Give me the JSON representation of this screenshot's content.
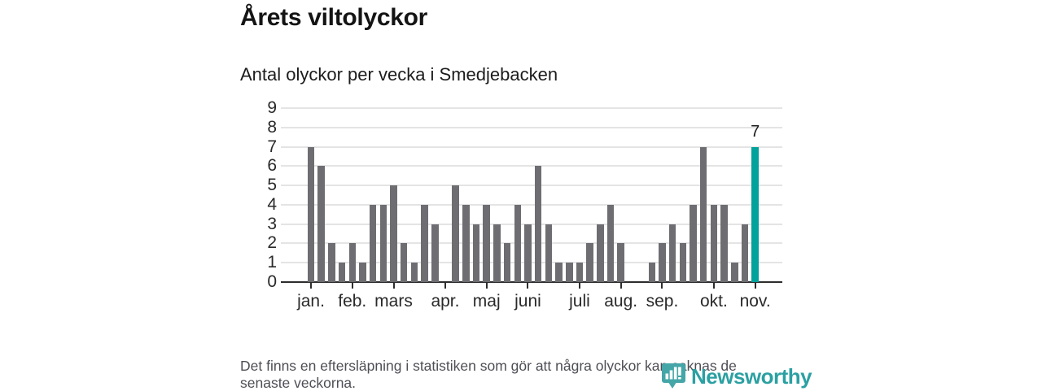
{
  "title": "Årets viltolyckor",
  "subtitle": "Antal olyckor per vecka i Smedjebacken",
  "footer": {
    "line1": "Det finns en eftersläpning i statistiken som gör att några olyckor kan saknas de",
    "line2": "senaste veckorna."
  },
  "logo": {
    "text": "Newsworthy",
    "icon": "newsworthy-speech-bubble-chart-icon"
  },
  "colors": {
    "bar": "#6d6d72",
    "highlight_teal": "#00a29b",
    "logo_teal": "#2ba0a2",
    "gridline": "#e4e4e4",
    "axis": "#2d2d2d"
  },
  "chart_data": {
    "type": "bar",
    "title": "Årets viltolyckor",
    "subtitle": "Antal olyckor per vecka i Smedjebacken",
    "x_unit": "vecka (week), jan–nov",
    "ylabel": "Antal olyckor",
    "values": [
      7,
      6,
      2,
      1,
      2,
      1,
      4,
      4,
      5,
      2,
      1,
      4,
      3,
      0,
      5,
      4,
      3,
      4,
      3,
      2,
      4,
      3,
      6,
      3,
      1,
      1,
      1,
      2,
      3,
      4,
      2,
      0,
      0,
      1,
      2,
      3,
      2,
      4,
      7,
      4,
      4,
      1,
      3,
      7
    ],
    "highlight_index": 43,
    "highlight_value": 7,
    "annotation_label": "7",
    "y_ticks": [
      "0",
      "1",
      "2",
      "3",
      "4",
      "5",
      "6",
      "7",
      "8",
      "9"
    ],
    "ylim": [
      0,
      9
    ],
    "grid": true,
    "legend": "none",
    "month_ticks": [
      {
        "label": "jan.",
        "index": 0
      },
      {
        "label": "feb.",
        "index": 4
      },
      {
        "label": "mars",
        "index": 8
      },
      {
        "label": "apr.",
        "index": 13
      },
      {
        "label": "maj",
        "index": 17
      },
      {
        "label": "juni",
        "index": 21
      },
      {
        "label": "juli",
        "index": 26
      },
      {
        "label": "aug.",
        "index": 30
      },
      {
        "label": "sep.",
        "index": 34
      },
      {
        "label": "okt.",
        "index": 39
      },
      {
        "label": "nov.",
        "index": 43
      }
    ]
  }
}
